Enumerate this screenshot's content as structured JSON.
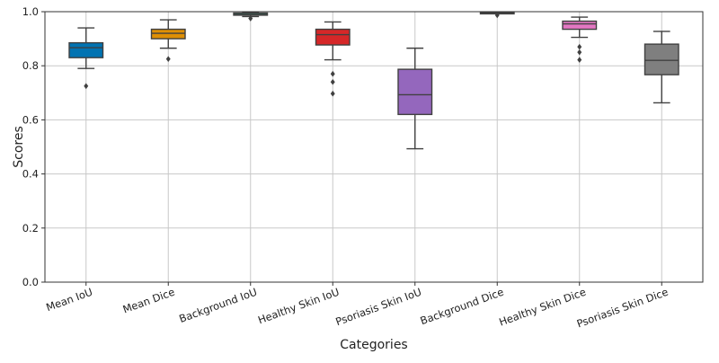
{
  "chart_data": {
    "type": "box",
    "xlabel": "Categories",
    "ylabel": "Scores",
    "ylim": [
      0,
      1.0
    ],
    "yticks": [
      "0.0",
      "0.2",
      "0.4",
      "0.6",
      "0.8",
      "1.0"
    ],
    "grid": true,
    "legend": "none",
    "categories": [
      "Mean IoU",
      "Mean Dice",
      "Background IoU",
      "Healthy Skin IoU",
      "Psoriasis Skin IoU",
      "Background Dice",
      "Healthy Skin Dice",
      "Psoriasis Skin Dice"
    ],
    "boxes": [
      {
        "category": "Mean IoU",
        "color": "#0173b2",
        "whisker_low": 0.79,
        "q1": 0.83,
        "median": 0.867,
        "q3": 0.885,
        "whisker_high": 0.94,
        "outliers": [
          0.725
        ]
      },
      {
        "category": "Mean Dice",
        "color": "#de8f05",
        "whisker_low": 0.865,
        "q1": 0.9,
        "median": 0.92,
        "q3": 0.935,
        "whisker_high": 0.97,
        "outliers": [
          0.825
        ]
      },
      {
        "category": "Background IoU",
        "color": "#029e73",
        "whisker_low": 0.982,
        "q1": 0.987,
        "median": 0.99,
        "q3": 0.995,
        "whisker_high": 0.998,
        "outliers": [
          0.975
        ]
      },
      {
        "category": "Healthy Skin IoU",
        "color": "#d62728",
        "whisker_low": 0.822,
        "q1": 0.877,
        "median": 0.915,
        "q3": 0.935,
        "whisker_high": 0.962,
        "outliers": [
          0.77,
          0.74,
          0.697
        ]
      },
      {
        "category": "Psoriasis Skin IoU",
        "color": "#9467bd",
        "whisker_low": 0.493,
        "q1": 0.62,
        "median": 0.693,
        "q3": 0.787,
        "whisker_high": 0.865,
        "outliers": []
      },
      {
        "category": "Background Dice",
        "color": "#029e73",
        "whisker_low": 0.993,
        "q1": 0.994,
        "median": 0.995,
        "q3": 0.997,
        "whisker_high": 0.999,
        "outliers": [
          0.987
        ]
      },
      {
        "category": "Healthy Skin Dice",
        "color": "#e377c2",
        "whisker_low": 0.905,
        "q1": 0.935,
        "median": 0.955,
        "q3": 0.965,
        "whisker_high": 0.98,
        "outliers": [
          0.87,
          0.85,
          0.822
        ]
      },
      {
        "category": "Psoriasis Skin Dice",
        "color": "#7f7f7f",
        "whisker_low": 0.663,
        "q1": 0.767,
        "median": 0.82,
        "q3": 0.88,
        "whisker_high": 0.927,
        "outliers": []
      }
    ]
  }
}
